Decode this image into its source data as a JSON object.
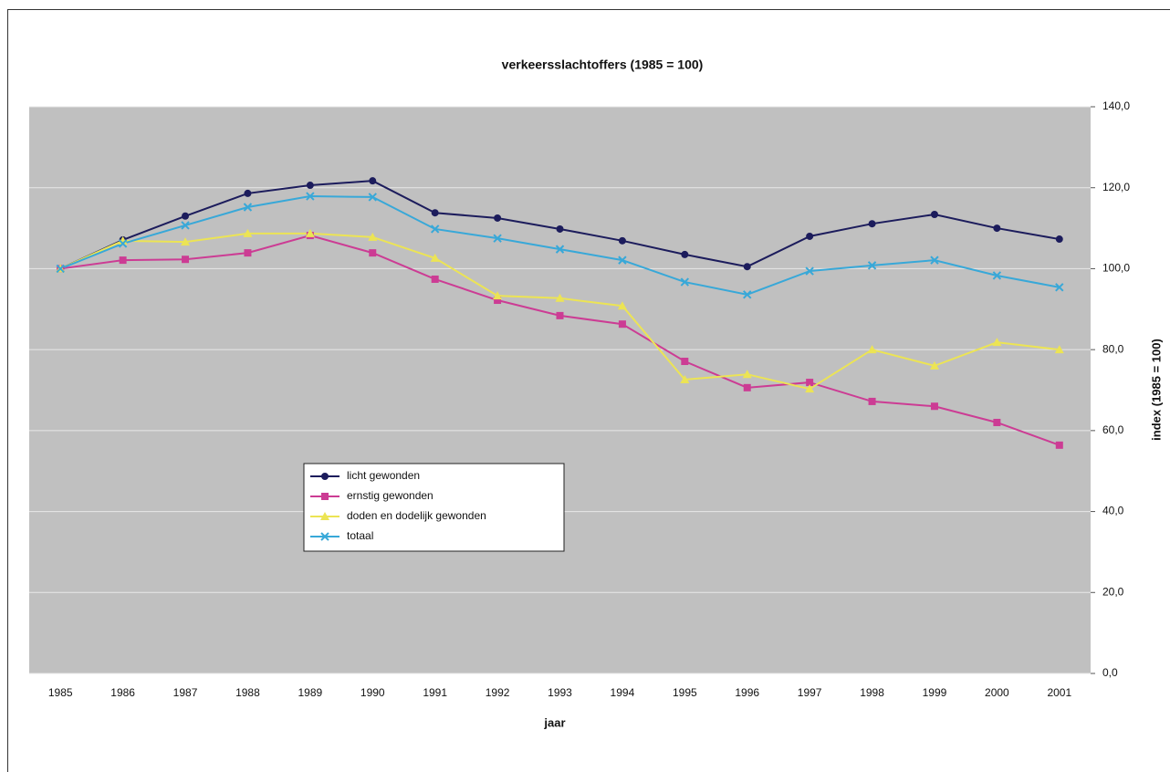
{
  "chart_data": {
    "type": "line",
    "title": "verkeersslachtoffers (1985 = 100)",
    "x_label": "jaar",
    "y_label": "index (1985 = 100)",
    "categories": [
      "1985",
      "1986",
      "1987",
      "1988",
      "1989",
      "1990",
      "1991",
      "1992",
      "1993",
      "1994",
      "1995",
      "1996",
      "1997",
      "1998",
      "1999",
      "2000",
      "2001"
    ],
    "series": [
      {
        "name": "licht gewonden",
        "color": "#1c1c5c",
        "marker": "circle",
        "values": [
          100,
          107.1,
          113,
          118.6,
          120.6,
          121.7,
          113.8,
          112.5,
          109.8,
          106.9,
          103.5,
          100.5,
          108,
          111.1,
          113.4,
          110,
          107.3
        ]
      },
      {
        "name": "ernstig gewonden",
        "color": "#cc3c94",
        "marker": "square",
        "values": [
          100,
          102.1,
          102.3,
          103.9,
          108.2,
          103.9,
          97.4,
          92.2,
          88.4,
          86.3,
          77.1,
          70.6,
          71.9,
          67.2,
          66,
          62,
          56.4
        ]
      },
      {
        "name": "doden en dodelijk gewonden",
        "color": "#ece454",
        "marker": "triangle",
        "values": [
          100,
          106.9,
          106.6,
          108.7,
          108.7,
          107.8,
          102.6,
          93.3,
          92.7,
          90.8,
          72.6,
          73.9,
          70.3,
          80,
          76,
          81.8,
          80
        ]
      },
      {
        "name": "totaal",
        "color": "#38a8d8",
        "marker": "x",
        "values": [
          100,
          106.2,
          110.7,
          115.2,
          117.9,
          117.7,
          109.8,
          107.5,
          104.8,
          102.1,
          96.7,
          93.6,
          99.4,
          100.8,
          102.1,
          98.3,
          95.4
        ]
      }
    ],
    "ylim": [
      0,
      140
    ],
    "yticks": [
      {
        "value": 0,
        "label": "0,0"
      },
      {
        "value": 20,
        "label": "20,0"
      },
      {
        "value": 40,
        "label": "40,0"
      },
      {
        "value": 60,
        "label": "60,0"
      },
      {
        "value": 80,
        "label": "80,0"
      },
      {
        "value": 100,
        "label": "100,0"
      },
      {
        "value": 120,
        "label": "120,0"
      },
      {
        "value": 140,
        "label": "140,0"
      }
    ],
    "y_axis_side": "right",
    "grid": true,
    "legend": "inside"
  }
}
